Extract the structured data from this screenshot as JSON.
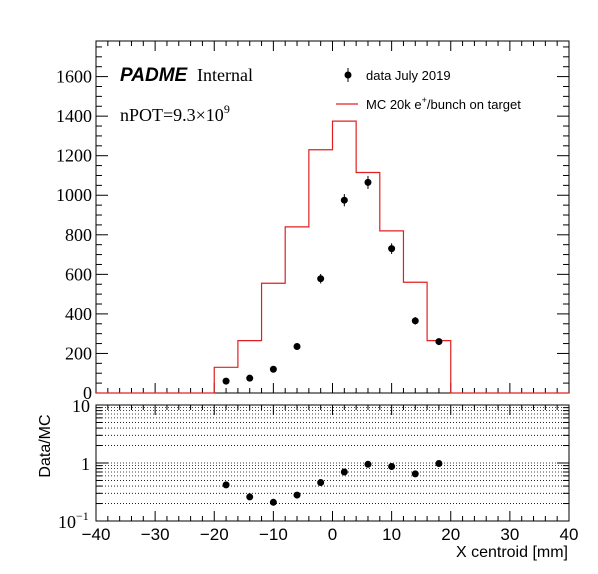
{
  "chart_data": [
    {
      "type": "scatter",
      "panel": "main",
      "brand": {
        "name": "PADME",
        "tag": "Internal"
      },
      "npot": {
        "prefix": "nPOT=9.3",
        "times": "×10",
        "exponent": "9"
      },
      "xlim": [
        -40,
        40
      ],
      "ylim": [
        0,
        1780
      ],
      "x_ticks": [
        -40,
        -30,
        -20,
        -10,
        0,
        10,
        20,
        30,
        40
      ],
      "y_ticks": [
        0,
        200,
        400,
        600,
        800,
        1000,
        1200,
        1400,
        1600
      ],
      "y_tick_labels": [
        "0",
        "200",
        "400",
        "600",
        "800",
        "1000",
        "1200",
        "1400",
        "1600"
      ],
      "legend": {
        "placement": "top-right",
        "data_label": "data July 2019",
        "mc_label_prefix": "MC 20k e",
        "mc_label_sup": "+",
        "mc_label_suffix": "/bunch on target"
      },
      "series": [
        {
          "name": "data July 2019",
          "type": "points",
          "color": "#000000",
          "x": [
            -18,
            -14,
            -10,
            -6,
            -2,
            2,
            6,
            10,
            14,
            18
          ],
          "y": [
            60,
            75,
            120,
            235,
            578,
            975,
            1065,
            730,
            365,
            260
          ],
          "err": [
            8,
            9,
            11,
            15,
            24,
            31,
            33,
            27,
            19,
            16
          ]
        },
        {
          "name": "MC 20k e+/bunch on target",
          "type": "histogram",
          "color": "#e02020",
          "bin_edges": [
            -40,
            -36,
            -32,
            -28,
            -24,
            -20,
            -16,
            -12,
            -8,
            -4,
            0,
            4,
            8,
            12,
            16,
            20,
            24,
            28,
            32,
            36,
            40
          ],
          "values": [
            0,
            0,
            0,
            0,
            0,
            130,
            265,
            555,
            840,
            1230,
            1375,
            1115,
            820,
            560,
            265,
            0,
            0,
            0,
            0,
            0
          ]
        }
      ]
    },
    {
      "type": "scatter",
      "panel": "ratio",
      "ylabel": "Data/MC",
      "xlabel": "X centroid [mm]",
      "xlim": [
        -40,
        40
      ],
      "ylim": [
        0.1,
        10
      ],
      "yscale": "log",
      "grid": "dotted",
      "x_ticks": [
        -40,
        -30,
        -20,
        -10,
        0,
        10,
        20,
        30,
        40
      ],
      "x_tick_labels": [
        "−40",
        "−30",
        "−20",
        "−10",
        "0",
        "10",
        "20",
        "30",
        "40"
      ],
      "y_major": [
        {
          "value": 0.1,
          "base": "10",
          "exp": "−1"
        },
        {
          "value": 1,
          "base": "1",
          "exp": ""
        },
        {
          "value": 10,
          "base": "10",
          "exp": ""
        }
      ],
      "series": [
        {
          "name": "Data/MC",
          "type": "points",
          "color": "#000000",
          "x": [
            -18,
            -14,
            -10,
            -6,
            -2,
            2,
            6,
            10,
            14,
            18
          ],
          "y": [
            0.42,
            0.26,
            0.21,
            0.28,
            0.46,
            0.7,
            0.95,
            0.87,
            0.65,
            0.98
          ]
        }
      ]
    }
  ]
}
